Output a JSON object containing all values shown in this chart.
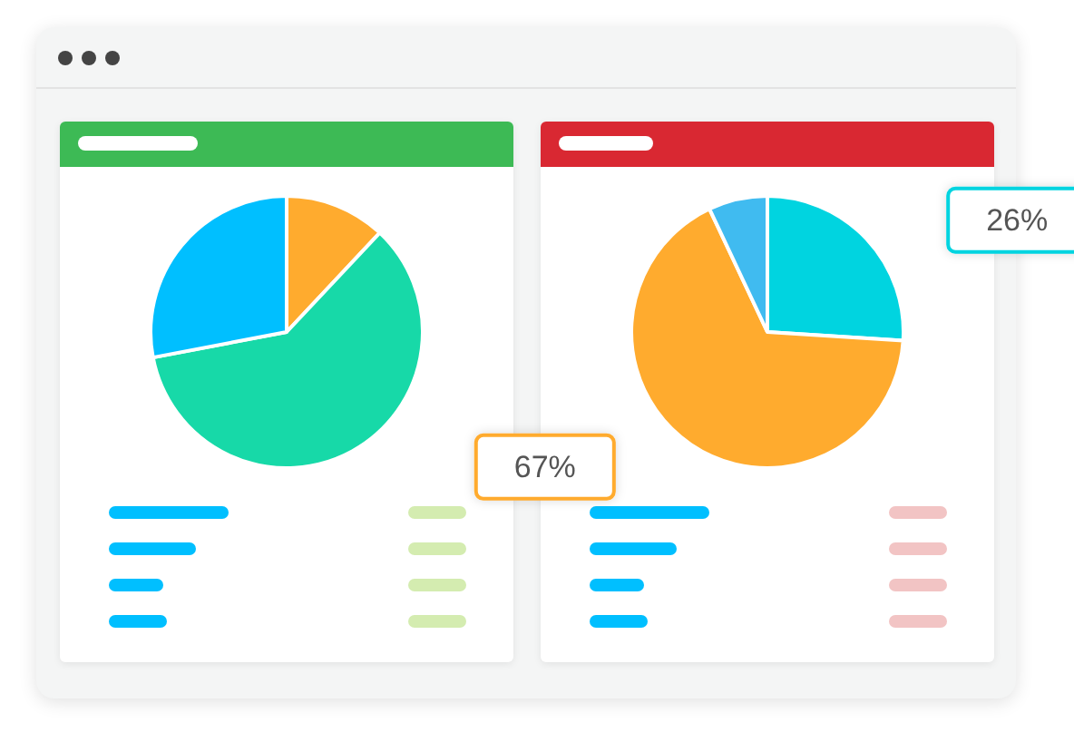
{
  "chart_data": [
    {
      "type": "pie",
      "categories": [
        null,
        null,
        null
      ],
      "values": [
        12,
        60,
        28
      ],
      "colors": [
        "#ffab2e",
        "#17d9a8",
        "#00bfff"
      ]
    },
    {
      "type": "pie",
      "categories": [
        null,
        null,
        null
      ],
      "values": [
        26,
        67,
        7
      ],
      "colors": [
        "#00d4e0",
        "#ffab2e",
        "#40bbf0"
      ],
      "value_labels": [
        "26%",
        "67%",
        null
      ]
    }
  ]
}
